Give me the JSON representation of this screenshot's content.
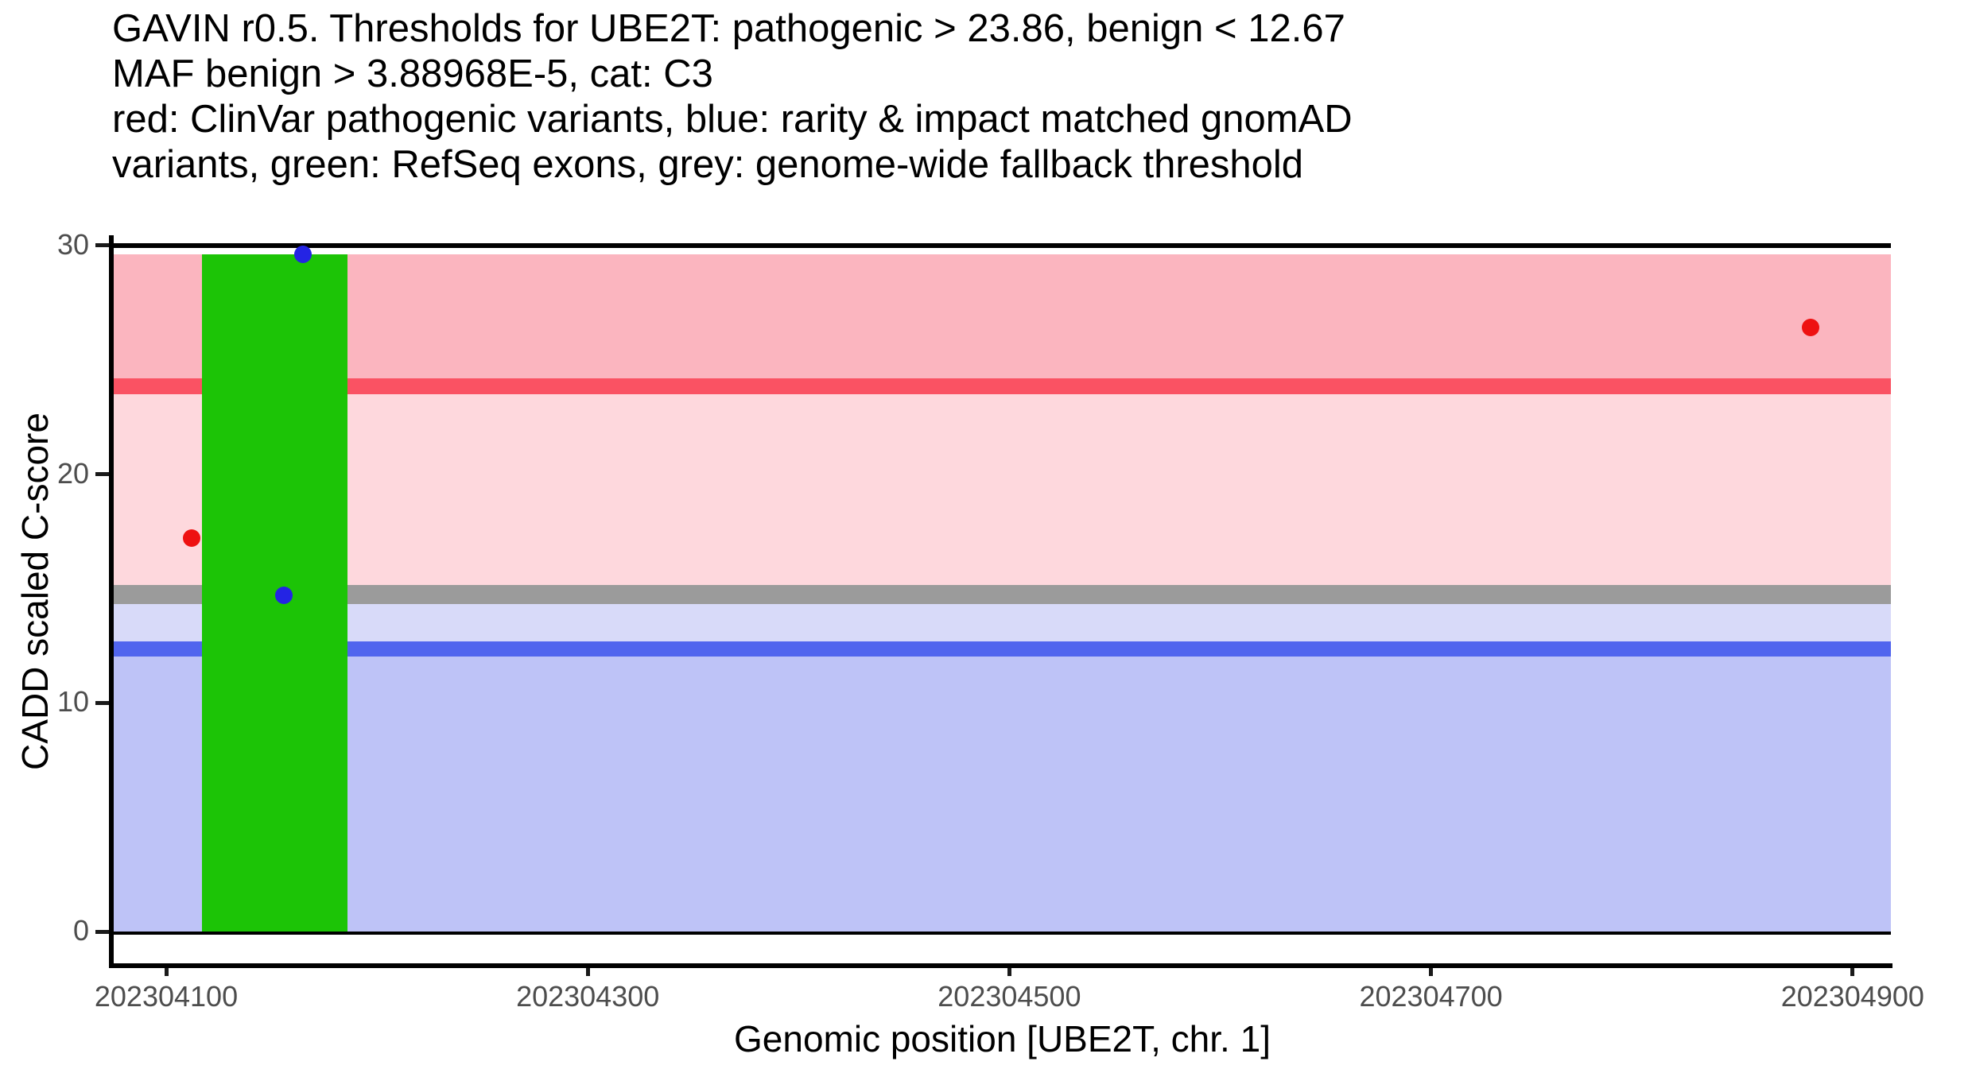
{
  "chart_data": {
    "type": "scatter",
    "title_lines": [
      "GAVIN r0.5. Thresholds for UBE2T: pathogenic > 23.86, benign < 12.67",
      "MAF benign > 3.88968E-5, cat: C3",
      "red: ClinVar pathogenic variants, blue: rarity & impact matched gnomAD",
      "variants, green: RefSeq exons, grey: genome-wide fallback threshold"
    ],
    "xlabel": "Genomic position [UBE2T, chr. 1]",
    "ylabel": "CADD scaled C-score",
    "gene": "UBE2T",
    "chromosome": "1",
    "thresholds": {
      "pathogenic_cadd": 23.86,
      "benign_cadd": 12.67,
      "genome_wide_fallback_cadd": 15,
      "maf_benign": "3.88968E-5",
      "category": "C3"
    },
    "x_ticks": [
      202304100,
      202304300,
      202304500,
      202304700,
      202304900
    ],
    "y_ticks": [
      0,
      10,
      20,
      30
    ],
    "x_range": [
      202304074,
      202304918
    ],
    "y_range": [
      0,
      30
    ],
    "grid": false,
    "legend_position": "none",
    "bands": [
      {
        "name": "pathogenic-zone",
        "from": 24.2,
        "to": 29.61,
        "color": "#FBB5BF"
      },
      {
        "name": "pathogenic-threshold-line",
        "from": 23.51,
        "to": 24.2,
        "color": "#FA5263"
      },
      {
        "name": "uncertain-zone-upper",
        "from": 15.17,
        "to": 23.51,
        "color": "#FED8DD"
      },
      {
        "name": "genome-wide-fallback-line",
        "from": 14.32,
        "to": 15.17,
        "color": "#9B9B9B"
      },
      {
        "name": "uncertain-zone-lower",
        "from": 12.69,
        "to": 14.32,
        "color": "#D8DAF9"
      },
      {
        "name": "benign-threshold-line",
        "from": 12.04,
        "to": 12.69,
        "color": "#5165EE"
      },
      {
        "name": "benign-zone",
        "from": 0.0,
        "to": 12.04,
        "color": "#BEC3F7"
      }
    ],
    "exons": [
      {
        "name": "refseq-exon",
        "start": 202304117,
        "end": 202304186,
        "top": 29.61,
        "bottom": 0,
        "color": "#1CC406"
      }
    ],
    "series": [
      {
        "name": "ClinVar pathogenic variants",
        "color": "#EE1111",
        "points": [
          {
            "pos": 202304112,
            "cadd": 17.2
          },
          {
            "pos": 202304880,
            "cadd": 26.4
          }
        ]
      },
      {
        "name": "rarity & impact matched gnomAD variants",
        "color": "#2424E4",
        "points": [
          {
            "pos": 202304165,
            "cadd": 29.6
          },
          {
            "pos": 202304156,
            "cadd": 14.7
          }
        ]
      }
    ]
  },
  "axis_style": {
    "tick_label_color": "#4D4D4D",
    "axis_line_color": "#000000"
  }
}
